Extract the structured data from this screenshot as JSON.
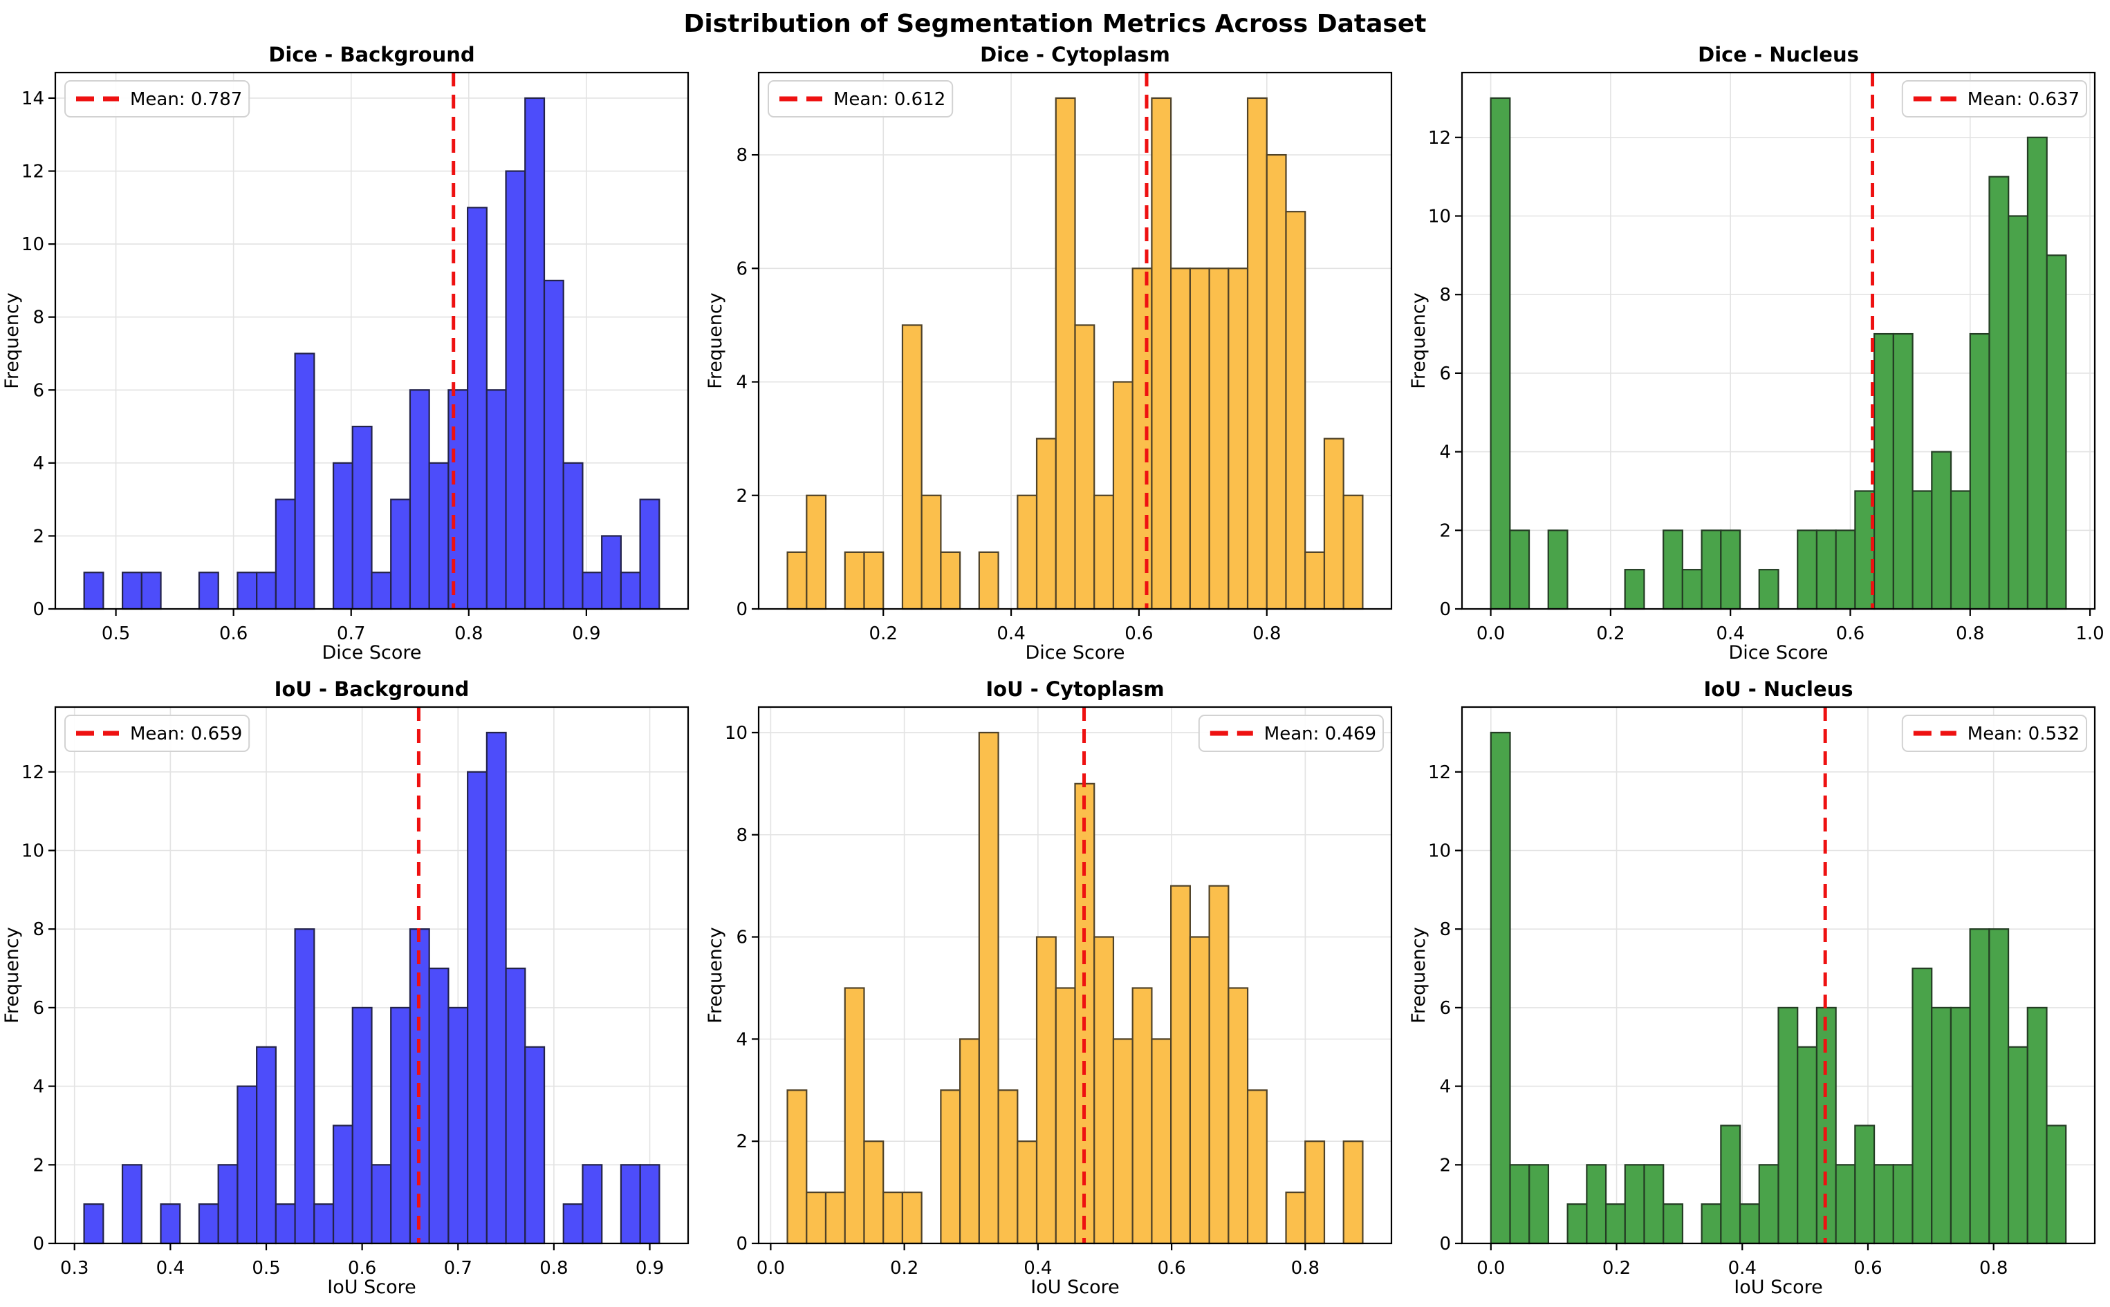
{
  "figure": {
    "title": "Distribution of Segmentation Metrics Across Dataset"
  },
  "chart_data": [
    {
      "type": "bar",
      "title": "Dice - Background",
      "xlabel": "Dice Score",
      "ylabel": "Frequency",
      "legend_label": "Mean: 0.787",
      "legend_loc": "upper-left",
      "mean": 0.787,
      "mean_color": "#ee1111",
      "fill": "#4d4dfa",
      "edge": "#23234a",
      "bin_start": 0.473,
      "bin_width": 0.0163,
      "counts": [
        1,
        0,
        1,
        1,
        0,
        0,
        1,
        0,
        1,
        1,
        3,
        7,
        0,
        4,
        5,
        1,
        3,
        6,
        4,
        6,
        11,
        6,
        12,
        14,
        9,
        4,
        1,
        2,
        1,
        3
      ],
      "xlim": [
        0.4485,
        0.9865
      ],
      "ylim": [
        0,
        14.7
      ],
      "xtick_values": [
        0.5,
        0.6,
        0.7,
        0.8,
        0.9
      ],
      "xtick_labels": [
        "0.5",
        "0.6",
        "0.7",
        "0.8",
        "0.9"
      ],
      "ytick_values": [
        0,
        2,
        4,
        6,
        8,
        10,
        12,
        14
      ],
      "grid": true
    },
    {
      "type": "bar",
      "title": "Dice - Cytoplasm",
      "xlabel": "Dice Score",
      "ylabel": "Frequency",
      "legend_label": "Mean: 0.612",
      "legend_loc": "upper-left",
      "mean": 0.612,
      "mean_color": "#ee1111",
      "fill": "#fbbf4c",
      "edge": "#4f4228",
      "bin_start": 0.05,
      "bin_width": 0.03,
      "counts": [
        1,
        2,
        0,
        1,
        1,
        0,
        5,
        2,
        1,
        0,
        1,
        0,
        2,
        3,
        9,
        5,
        2,
        4,
        6,
        9,
        6,
        6,
        6,
        6,
        9,
        8,
        7,
        1,
        3,
        2
      ],
      "xlim": [
        0.005,
        0.995
      ],
      "ylim": [
        0,
        9.45
      ],
      "xtick_values": [
        0.2,
        0.4,
        0.6,
        0.8
      ],
      "xtick_labels": [
        "0.2",
        "0.4",
        "0.6",
        "0.8"
      ],
      "ytick_values": [
        0,
        2,
        4,
        6,
        8
      ],
      "grid": true
    },
    {
      "type": "bar",
      "title": "Dice - Nucleus",
      "xlabel": "Dice Score",
      "ylabel": "Frequency",
      "legend_label": "Mean: 0.637",
      "legend_loc": "upper-right",
      "mean": 0.637,
      "mean_color": "#ee1111",
      "fill": "#4aa34a",
      "edge": "#243d24",
      "bin_start": 0.0,
      "bin_width": 0.032,
      "counts": [
        13,
        2,
        0,
        2,
        0,
        0,
        0,
        1,
        0,
        2,
        1,
        2,
        2,
        0,
        1,
        0,
        2,
        2,
        2,
        3,
        7,
        7,
        3,
        4,
        3,
        7,
        11,
        10,
        12,
        9
      ],
      "xlim": [
        -0.048,
        1.008
      ],
      "ylim": [
        0,
        13.65
      ],
      "xtick_values": [
        0.0,
        0.2,
        0.4,
        0.6,
        0.8,
        1.0
      ],
      "xtick_labels": [
        "0.0",
        "0.2",
        "0.4",
        "0.6",
        "0.8",
        "1.0"
      ],
      "ytick_values": [
        0,
        2,
        4,
        6,
        8,
        10,
        12
      ],
      "grid": true
    },
    {
      "type": "bar",
      "title": "IoU - Background",
      "xlabel": "IoU Score",
      "ylabel": "Frequency",
      "legend_label": "Mean: 0.659",
      "legend_loc": "upper-left",
      "mean": 0.659,
      "mean_color": "#ee1111",
      "fill": "#4d4dfa",
      "edge": "#23234a",
      "bin_start": 0.31,
      "bin_width": 0.02,
      "counts": [
        1,
        0,
        2,
        0,
        1,
        0,
        1,
        2,
        4,
        5,
        1,
        8,
        1,
        3,
        6,
        2,
        6,
        8,
        7,
        6,
        12,
        13,
        7,
        5,
        0,
        1,
        2,
        0,
        2,
        2
      ],
      "xlim": [
        0.28,
        0.94
      ],
      "ylim": [
        0,
        13.65
      ],
      "xtick_values": [
        0.3,
        0.4,
        0.5,
        0.6,
        0.7,
        0.8,
        0.9
      ],
      "xtick_labels": [
        "0.3",
        "0.4",
        "0.5",
        "0.6",
        "0.7",
        "0.8",
        "0.9"
      ],
      "ytick_values": [
        0,
        2,
        4,
        6,
        8,
        10,
        12
      ],
      "grid": true
    },
    {
      "type": "bar",
      "title": "IoU - Cytoplasm",
      "xlabel": "IoU Score",
      "ylabel": "Frequency",
      "legend_label": "Mean: 0.469",
      "legend_loc": "upper-right",
      "mean": 0.469,
      "mean_color": "#ee1111",
      "fill": "#fbbf4c",
      "edge": "#4f4228",
      "bin_start": 0.025,
      "bin_width": 0.0287,
      "counts": [
        3,
        1,
        1,
        5,
        2,
        1,
        1,
        0,
        3,
        4,
        10,
        3,
        2,
        6,
        5,
        9,
        6,
        4,
        5,
        4,
        7,
        6,
        7,
        5,
        3,
        0,
        1,
        2,
        0,
        2
      ],
      "xlim": [
        -0.018,
        0.929
      ],
      "ylim": [
        0,
        10.5
      ],
      "xtick_values": [
        0.0,
        0.2,
        0.4,
        0.6,
        0.8
      ],
      "xtick_labels": [
        "0.0",
        "0.2",
        "0.4",
        "0.6",
        "0.8"
      ],
      "ytick_values": [
        0,
        2,
        4,
        6,
        8,
        10
      ],
      "grid": true
    },
    {
      "type": "bar",
      "title": "IoU - Nucleus",
      "xlabel": "IoU Score",
      "ylabel": "Frequency",
      "legend_label": "Mean: 0.532",
      "legend_loc": "upper-right",
      "mean": 0.532,
      "mean_color": "#ee1111",
      "fill": "#4aa34a",
      "edge": "#243d24",
      "bin_start": 0.0,
      "bin_width": 0.0305,
      "counts": [
        13,
        2,
        2,
        0,
        1,
        2,
        1,
        2,
        2,
        1,
        0,
        1,
        3,
        1,
        2,
        6,
        5,
        6,
        2,
        3,
        2,
        2,
        7,
        6,
        6,
        8,
        8,
        5,
        6,
        3
      ],
      "xlim": [
        -0.046,
        0.961
      ],
      "ylim": [
        0,
        13.65
      ],
      "xtick_values": [
        0.0,
        0.2,
        0.4,
        0.6,
        0.8
      ],
      "xtick_labels": [
        "0.0",
        "0.2",
        "0.4",
        "0.6",
        "0.8"
      ],
      "ytick_values": [
        0,
        2,
        4,
        6,
        8,
        10,
        12
      ],
      "grid": true
    }
  ],
  "style": {
    "grid_color": "#e3e3e3",
    "spine_color": "#000000",
    "text_color": "#000000",
    "legend_border": "#d2d2d2",
    "legend_bg": "#ffffff"
  }
}
